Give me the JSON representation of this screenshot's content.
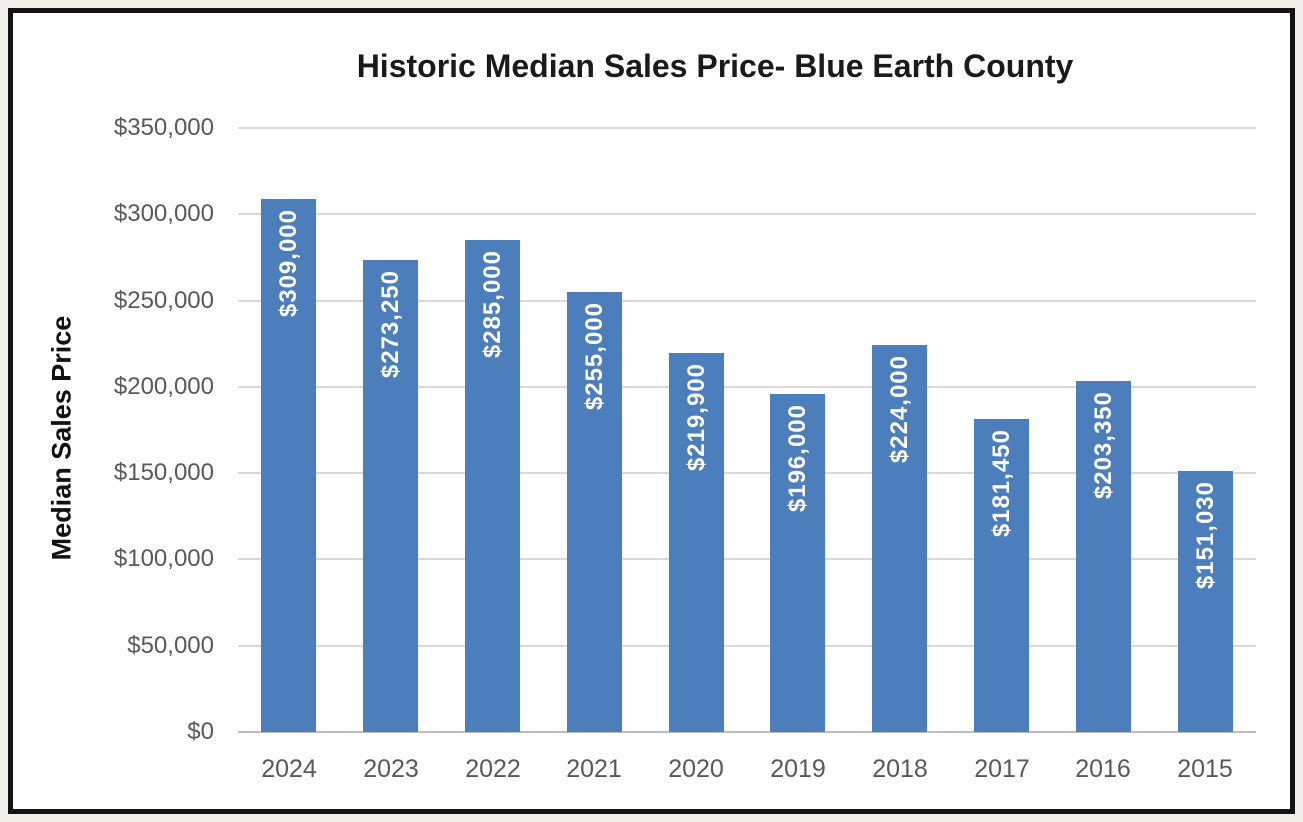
{
  "page": {
    "background_color": "#efeee8",
    "frame_border_color": "#131313",
    "frame_background": "#ffffff"
  },
  "chart_data": {
    "type": "bar",
    "title": "Historic Median Sales Price- Blue Earth County",
    "xlabel": "",
    "ylabel": "Median Sales Price",
    "categories": [
      "2024",
      "2023",
      "2022",
      "2021",
      "2020",
      "2019",
      "2018",
      "2017",
      "2016",
      "2015"
    ],
    "values": [
      309000,
      273250,
      285000,
      255000,
      219900,
      196000,
      224000,
      181450,
      203350,
      151030
    ],
    "value_labels": [
      "$309,000",
      "$273,250",
      "$285,000",
      "$255,000",
      "$219,900",
      "$196,000",
      "$224,000",
      "$181,450",
      "$203,350",
      "$151,030"
    ],
    "ylim": [
      0,
      350000
    ],
    "ytick_values": [
      0,
      50000,
      100000,
      150000,
      200000,
      250000,
      300000,
      350000
    ],
    "ytick_labels": [
      "$0",
      "$50,000",
      "$100,000",
      "$150,000",
      "$200,000",
      "$250,000",
      "$300,000",
      "$350,000"
    ],
    "grid": "horizontal",
    "legend": "none",
    "bar_color": "#4d7ebc",
    "bar_label_color": "#ffffff",
    "gridline_color": "#d9d9d9",
    "axis_line_color": "#bdbdbd",
    "tick_label_color": "#595959",
    "title_color": "#1a1a1a"
  }
}
